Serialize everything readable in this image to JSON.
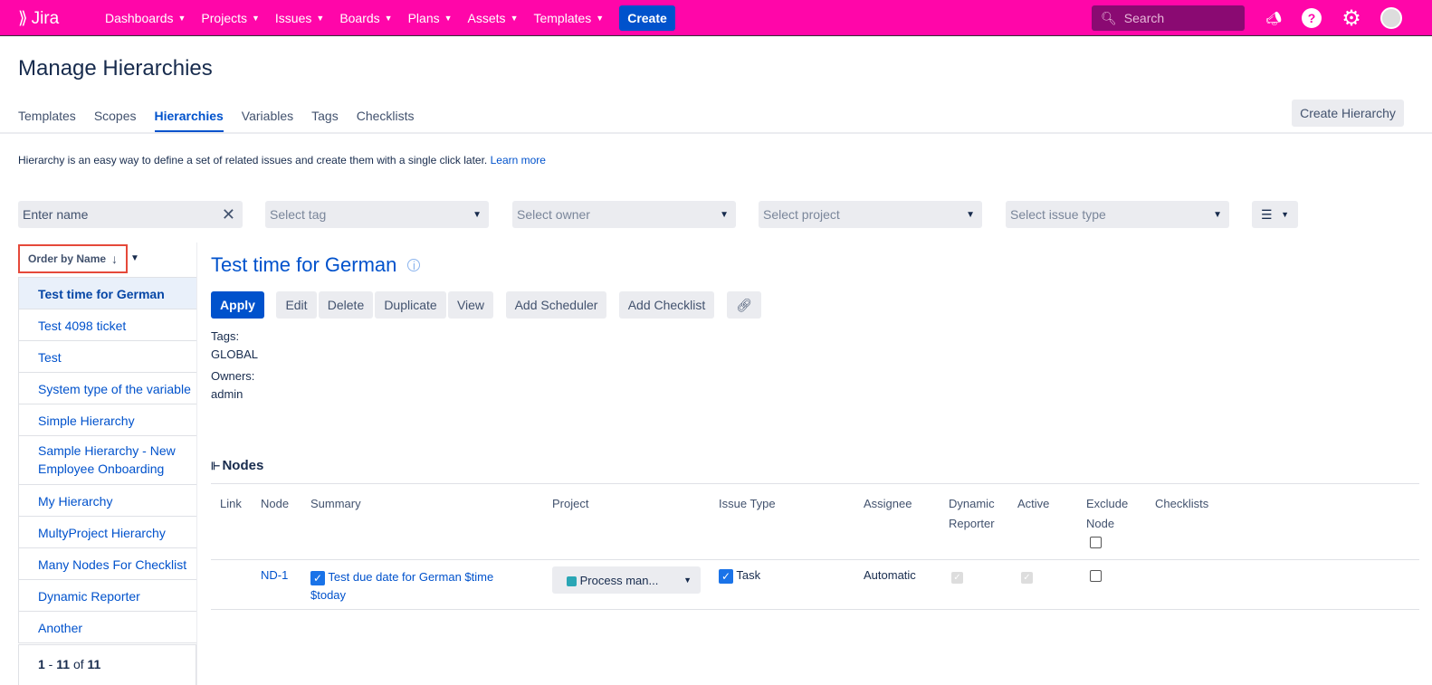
{
  "nav": {
    "logo": "Jira",
    "menu": [
      "Dashboards",
      "Projects",
      "Issues",
      "Boards",
      "Plans",
      "Assets",
      "Templates"
    ],
    "create": "Create",
    "search_placeholder": "Search",
    "brand_color": "#ff06a9"
  },
  "page": {
    "title": "Manage Hierarchies",
    "tabs": [
      "Templates",
      "Scopes",
      "Hierarchies",
      "Variables",
      "Tags",
      "Checklists"
    ],
    "active_tab": "Hierarchies",
    "create_hierarchy": "Create Hierarchy",
    "description": "Hierarchy is an easy way to define a set of related issues and create them with a single click later.",
    "learn_more": "Learn more"
  },
  "filters": {
    "name_placeholder": "Enter name",
    "tag": "Select tag",
    "owner": "Select owner",
    "project": "Select project",
    "issue_type": "Select issue type"
  },
  "sidebar": {
    "order_label": "Order by Name",
    "items": [
      "Test time for German",
      "Test 4098 ticket",
      "Test",
      "System type of the variable",
      "Simple Hierarchy",
      "Sample Hierarchy - New Employee Onboarding",
      "My Hierarchy",
      "MultyProject Hierarchy",
      "Many Nodes For Checklist",
      "Dynamic Reporter",
      "Another"
    ],
    "selected": "Test time for German",
    "pager": {
      "from": "1",
      "to": "11",
      "of": "of",
      "total": "11"
    }
  },
  "detail": {
    "title": "Test time for German",
    "buttons": {
      "apply": "Apply",
      "edit": "Edit",
      "delete": "Delete",
      "duplicate": "Duplicate",
      "view": "View",
      "add_scheduler": "Add Scheduler",
      "add_checklist": "Add Checklist"
    },
    "tags_label": "Tags:",
    "tags": "GLOBAL",
    "owners_label": "Owners:",
    "owners": "admin"
  },
  "nodes": {
    "title": "Nodes",
    "headers": [
      "Link",
      "Node",
      "Summary",
      "Project",
      "Issue Type",
      "Assignee",
      "Dynamic Reporter",
      "Active",
      "Exclude Node",
      "Checklists"
    ],
    "rows": [
      {
        "link": "",
        "node": "ND-1",
        "summary": "Test due date for German $time $today",
        "summary_checked": true,
        "project": "Process man...",
        "issue_type": "Task",
        "issue_type_checked": true,
        "assignee": "Automatic",
        "dynamic_reporter": true,
        "active": true,
        "exclude": false
      }
    ]
  }
}
